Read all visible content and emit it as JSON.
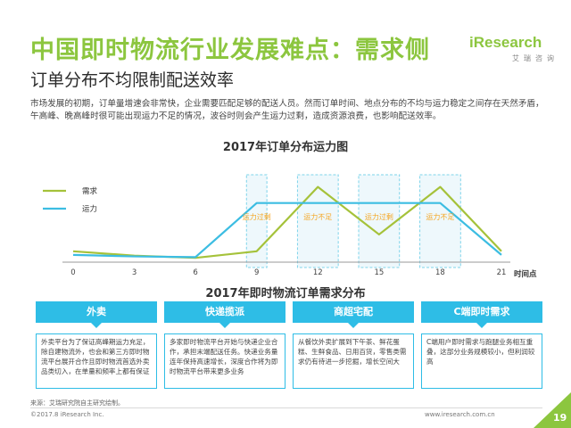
{
  "header": {
    "title": "中国即时物流行业发展难点：需求侧",
    "subtitle": "订单分布不均限制配送效率"
  },
  "logo": {
    "brand": "iResearch",
    "brand_cn": "艾瑞咨询"
  },
  "intro": "市场发展的初期，订单量增速会非常快，企业需要匹配足够的配送人员。然而订单时间、地点分布的不均与运力稳定之间存在天然矛盾，午高峰、晚高峰时很可能出现运力不足的情况，波谷时则会产生运力过剩，造成资源浪费，也影响配送效率。",
  "colors": {
    "accent": "#8cc63f",
    "demand": "#a5c23a",
    "capacity": "#3cbde2",
    "box_border": "#7ed3ea",
    "card": "#2ebde6"
  },
  "chart_data": {
    "type": "line",
    "title": "2017年订单分布运力图",
    "xlabel": "时间点",
    "ylabel": "",
    "x": [
      0,
      3,
      6,
      9,
      12,
      15,
      18,
      21
    ],
    "xlim": [
      0,
      21
    ],
    "ylim": [
      0,
      100
    ],
    "grid": false,
    "legend_position": "top-left",
    "series": [
      {
        "name": "需求",
        "x": [
          0,
          3,
          6,
          9,
          12,
          15,
          18,
          21
        ],
        "values": [
          10,
          4,
          1,
          10,
          98,
          33,
          98,
          10
        ]
      },
      {
        "name": "运力",
        "x": [
          0,
          3,
          6,
          9,
          12,
          15,
          18,
          21
        ],
        "values": [
          5,
          3,
          2,
          76,
          76,
          76,
          76,
          5
        ]
      }
    ],
    "annotations": [
      {
        "label": "运力过剩",
        "x_from": 8.5,
        "x_to": 9.5
      },
      {
        "label": "运力不足",
        "x_from": 11,
        "x_to": 13
      },
      {
        "label": "运力过剩",
        "x_from": 14,
        "x_to": 16
      },
      {
        "label": "运力不足",
        "x_from": 17,
        "x_to": 19
      }
    ]
  },
  "section_title": "2017年即时物流订单需求分布",
  "cards": [
    {
      "title": "外卖",
      "body": "外卖平台为了保证高峰期运力充足，除自建物流外，也会和第三方即时物流平台展开合作且即时物流首选外卖品类切入，在单量和频率上都有保证"
    },
    {
      "title": "快递揽派",
      "body": "多家即时物流平台开始与快递企业合作，承担末端配送任务。快递业务量连年保持高速增长，深度合作将为即时物流平台带来更多业务"
    },
    {
      "title": "商超宅配",
      "body": "从餐饮外卖扩展到下午茶、鲜花蛋糕、生鲜食品、日用百货，零售类需求仍有待进一步挖掘，增长空间大"
    },
    {
      "title": "C端即时需求",
      "body": "C端用户即时需求与跑腿业务相互重叠，这部分业务规模较小，但利润较高"
    }
  ],
  "footer": {
    "source": "来源：艾瑞研究院自主研究绘制。",
    "copyright": "©2017.8 iResearch Inc.",
    "site": "www.iresearch.com.cn",
    "page": "19"
  }
}
